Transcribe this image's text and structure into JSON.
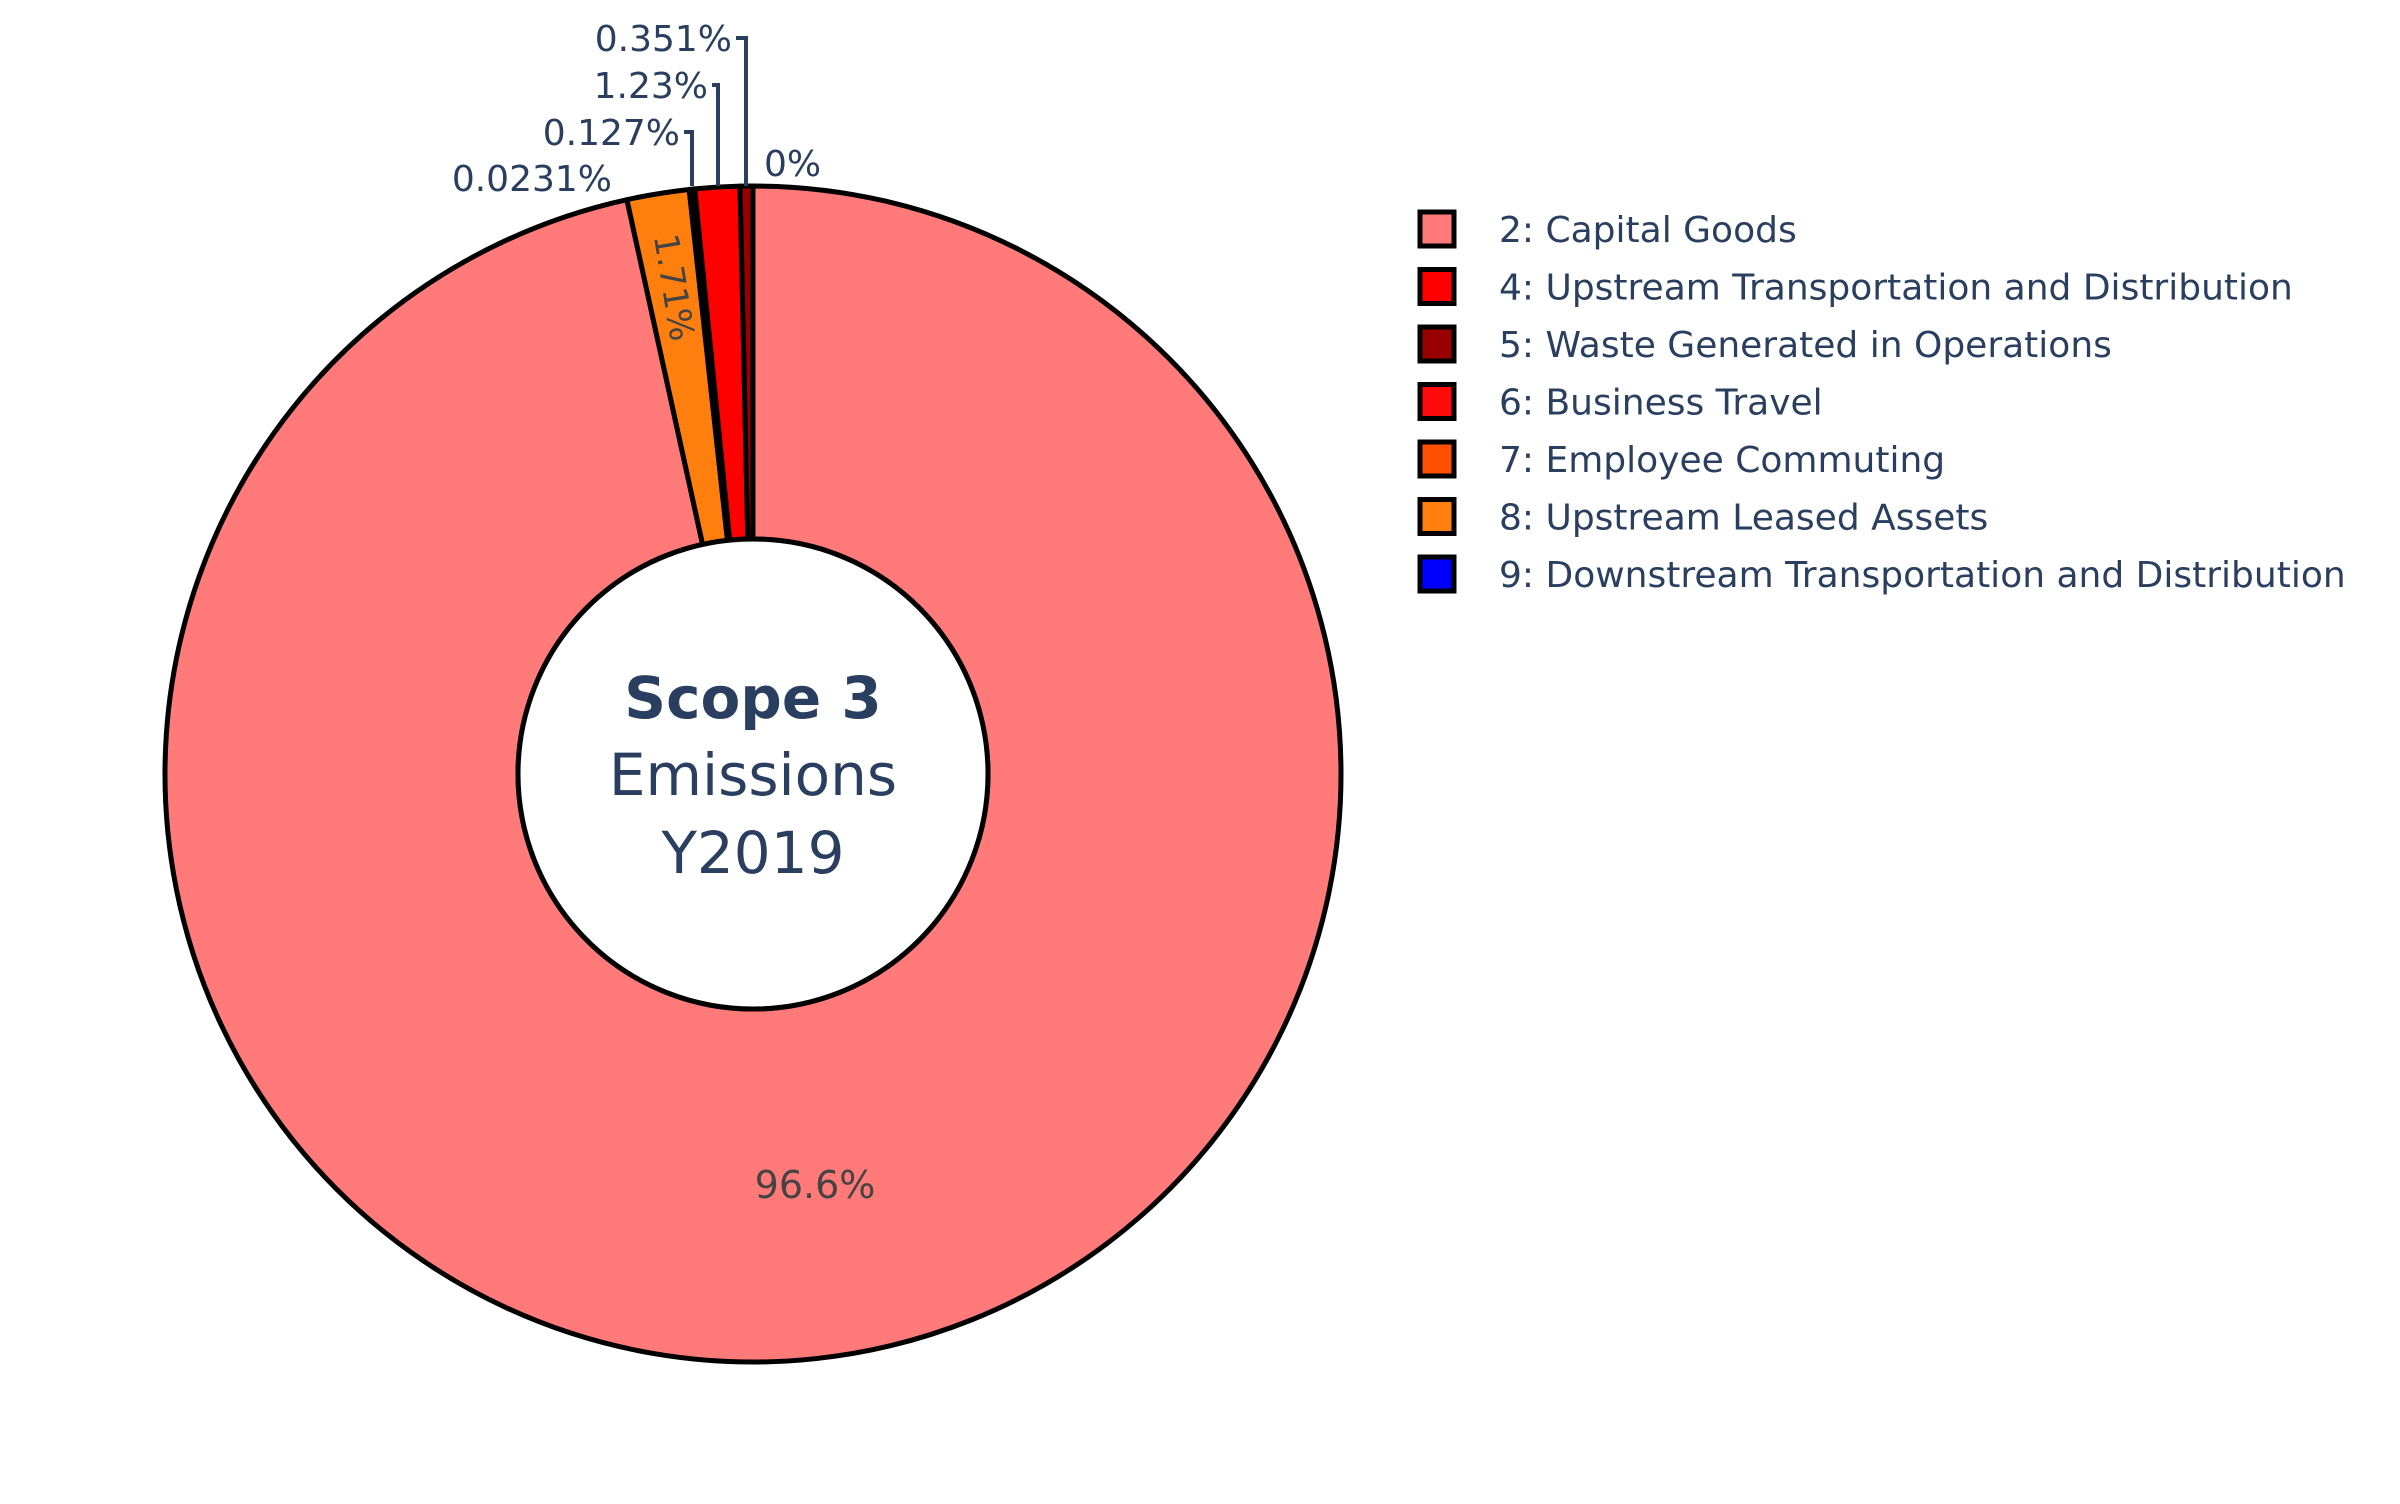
{
  "chart_data": {
    "type": "pie",
    "hole": true,
    "center_title": {
      "line1": "Scope 3",
      "line2": "Emissions",
      "line3": "Y2019"
    },
    "slices": [
      {
        "label": "2: Capital Goods",
        "percent": 96.6,
        "percent_text": "96.6%",
        "color": "#ff7a78"
      },
      {
        "label": "4: Upstream Transportation and Distribution",
        "percent": 1.23,
        "percent_text": "1.23%",
        "color": "#ff0000"
      },
      {
        "label": "5: Waste Generated in Operations",
        "percent": 0.351,
        "percent_text": "0.351%",
        "color": "#990000"
      },
      {
        "label": "6: Business Travel",
        "percent": 0.127,
        "percent_text": "0.127%",
        "color": "#ff0a0a"
      },
      {
        "label": "7: Employee Commuting",
        "percent": 0.0231,
        "percent_text": "0.0231%",
        "color": "#ff4f00"
      },
      {
        "label": "8: Upstream Leased Assets",
        "percent": 1.71,
        "percent_text": "1.71%",
        "color": "#ff7f0e"
      },
      {
        "label": "9: Downstream Transportation and Distribution",
        "percent": 0,
        "percent_text": "0%",
        "color": "#0000ff"
      }
    ],
    "legend_position": "right",
    "text_color": "#2a3f5f",
    "inside_text_color": "#444444",
    "slice_outline_color": "#000000"
  }
}
